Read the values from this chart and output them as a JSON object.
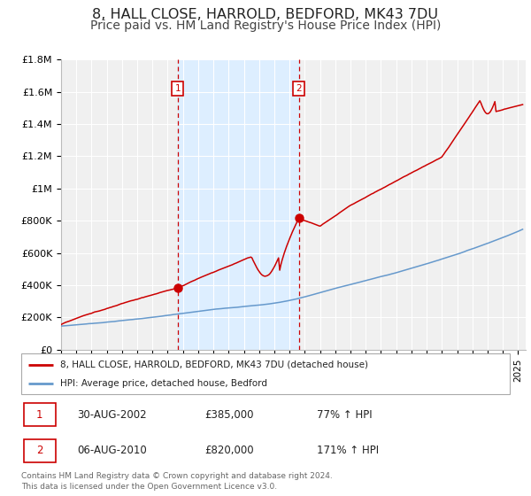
{
  "title": "8, HALL CLOSE, HARROLD, BEDFORD, MK43 7DU",
  "subtitle": "Price paid vs. HM Land Registry's House Price Index (HPI)",
  "ylim": [
    0,
    1800000
  ],
  "yticks": [
    0,
    200000,
    400000,
    600000,
    800000,
    1000000,
    1200000,
    1400000,
    1600000,
    1800000
  ],
  "ytick_labels": [
    "£0",
    "£200K",
    "£400K",
    "£600K",
    "£800K",
    "£1M",
    "£1.2M",
    "£1.4M",
    "£1.6M",
    "£1.8M"
  ],
  "xlim_start": 1995.0,
  "xlim_end": 2025.5,
  "title_fontsize": 11.5,
  "subtitle_fontsize": 10,
  "red_line_color": "#cc0000",
  "blue_line_color": "#6699cc",
  "background_color": "#ffffff",
  "plot_bg_color": "#f0f0f0",
  "shaded_region_color": "#ddeeff",
  "shaded_x_start": 2002.65,
  "shaded_x_end": 2010.6,
  "marker1_x": 2002.65,
  "marker1_y": 385000,
  "marker2_x": 2010.6,
  "marker2_y": 820000,
  "legend_label_red": "8, HALL CLOSE, HARROLD, BEDFORD, MK43 7DU (detached house)",
  "legend_label_blue": "HPI: Average price, detached house, Bedford",
  "annotation1_label": "1",
  "annotation2_label": "2",
  "table_row1": [
    "1",
    "30-AUG-2002",
    "£385,000",
    "77% ↑ HPI"
  ],
  "table_row2": [
    "2",
    "06-AUG-2010",
    "£820,000",
    "171% ↑ HPI"
  ],
  "footer_text": "Contains HM Land Registry data © Crown copyright and database right 2024.\nThis data is licensed under the Open Government Licence v3.0.",
  "dashed_line_color": "#cc0000",
  "grid_color": "#ffffff"
}
